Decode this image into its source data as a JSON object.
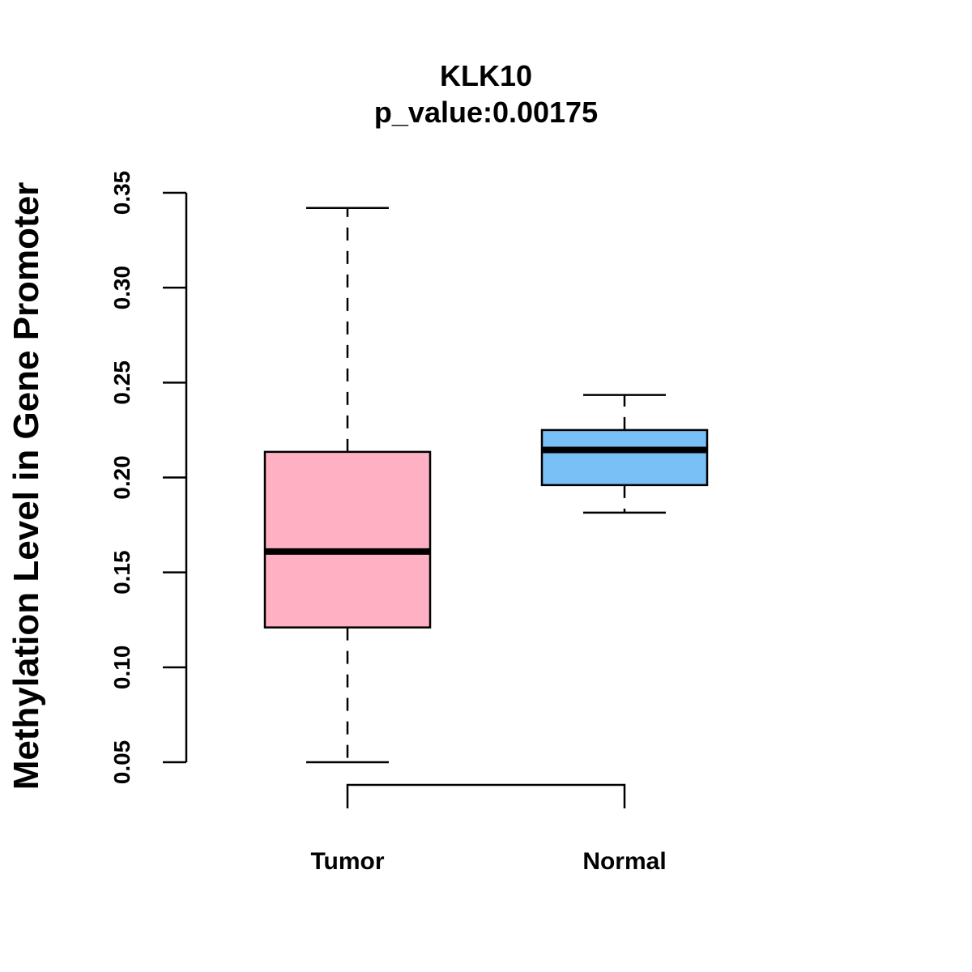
{
  "chart_data": {
    "type": "boxplot",
    "title": "KLK10",
    "subtitle": "p_value:0.00175",
    "xlabel": "",
    "ylabel": "Methylation Level in Gene Promoter",
    "ylim": [
      0.05,
      0.35
    ],
    "yticks": [
      "0.05",
      "0.10",
      "0.15",
      "0.20",
      "0.25",
      "0.30",
      "0.35"
    ],
    "categories": [
      "Tumor",
      "Normal"
    ],
    "series": [
      {
        "name": "Tumor",
        "whisker_low": 0.05,
        "q1": 0.121,
        "median": 0.161,
        "q3": 0.2135,
        "whisker_high": 0.342,
        "color": "#FFB1C3"
      },
      {
        "name": "Normal",
        "whisker_low": 0.1815,
        "q1": 0.196,
        "median": 0.2145,
        "q3": 0.225,
        "whisker_high": 0.2435,
        "color": "#79C0F7"
      }
    ],
    "comparison_bracket": [
      "Tumor",
      "Normal"
    ],
    "grid": false
  }
}
